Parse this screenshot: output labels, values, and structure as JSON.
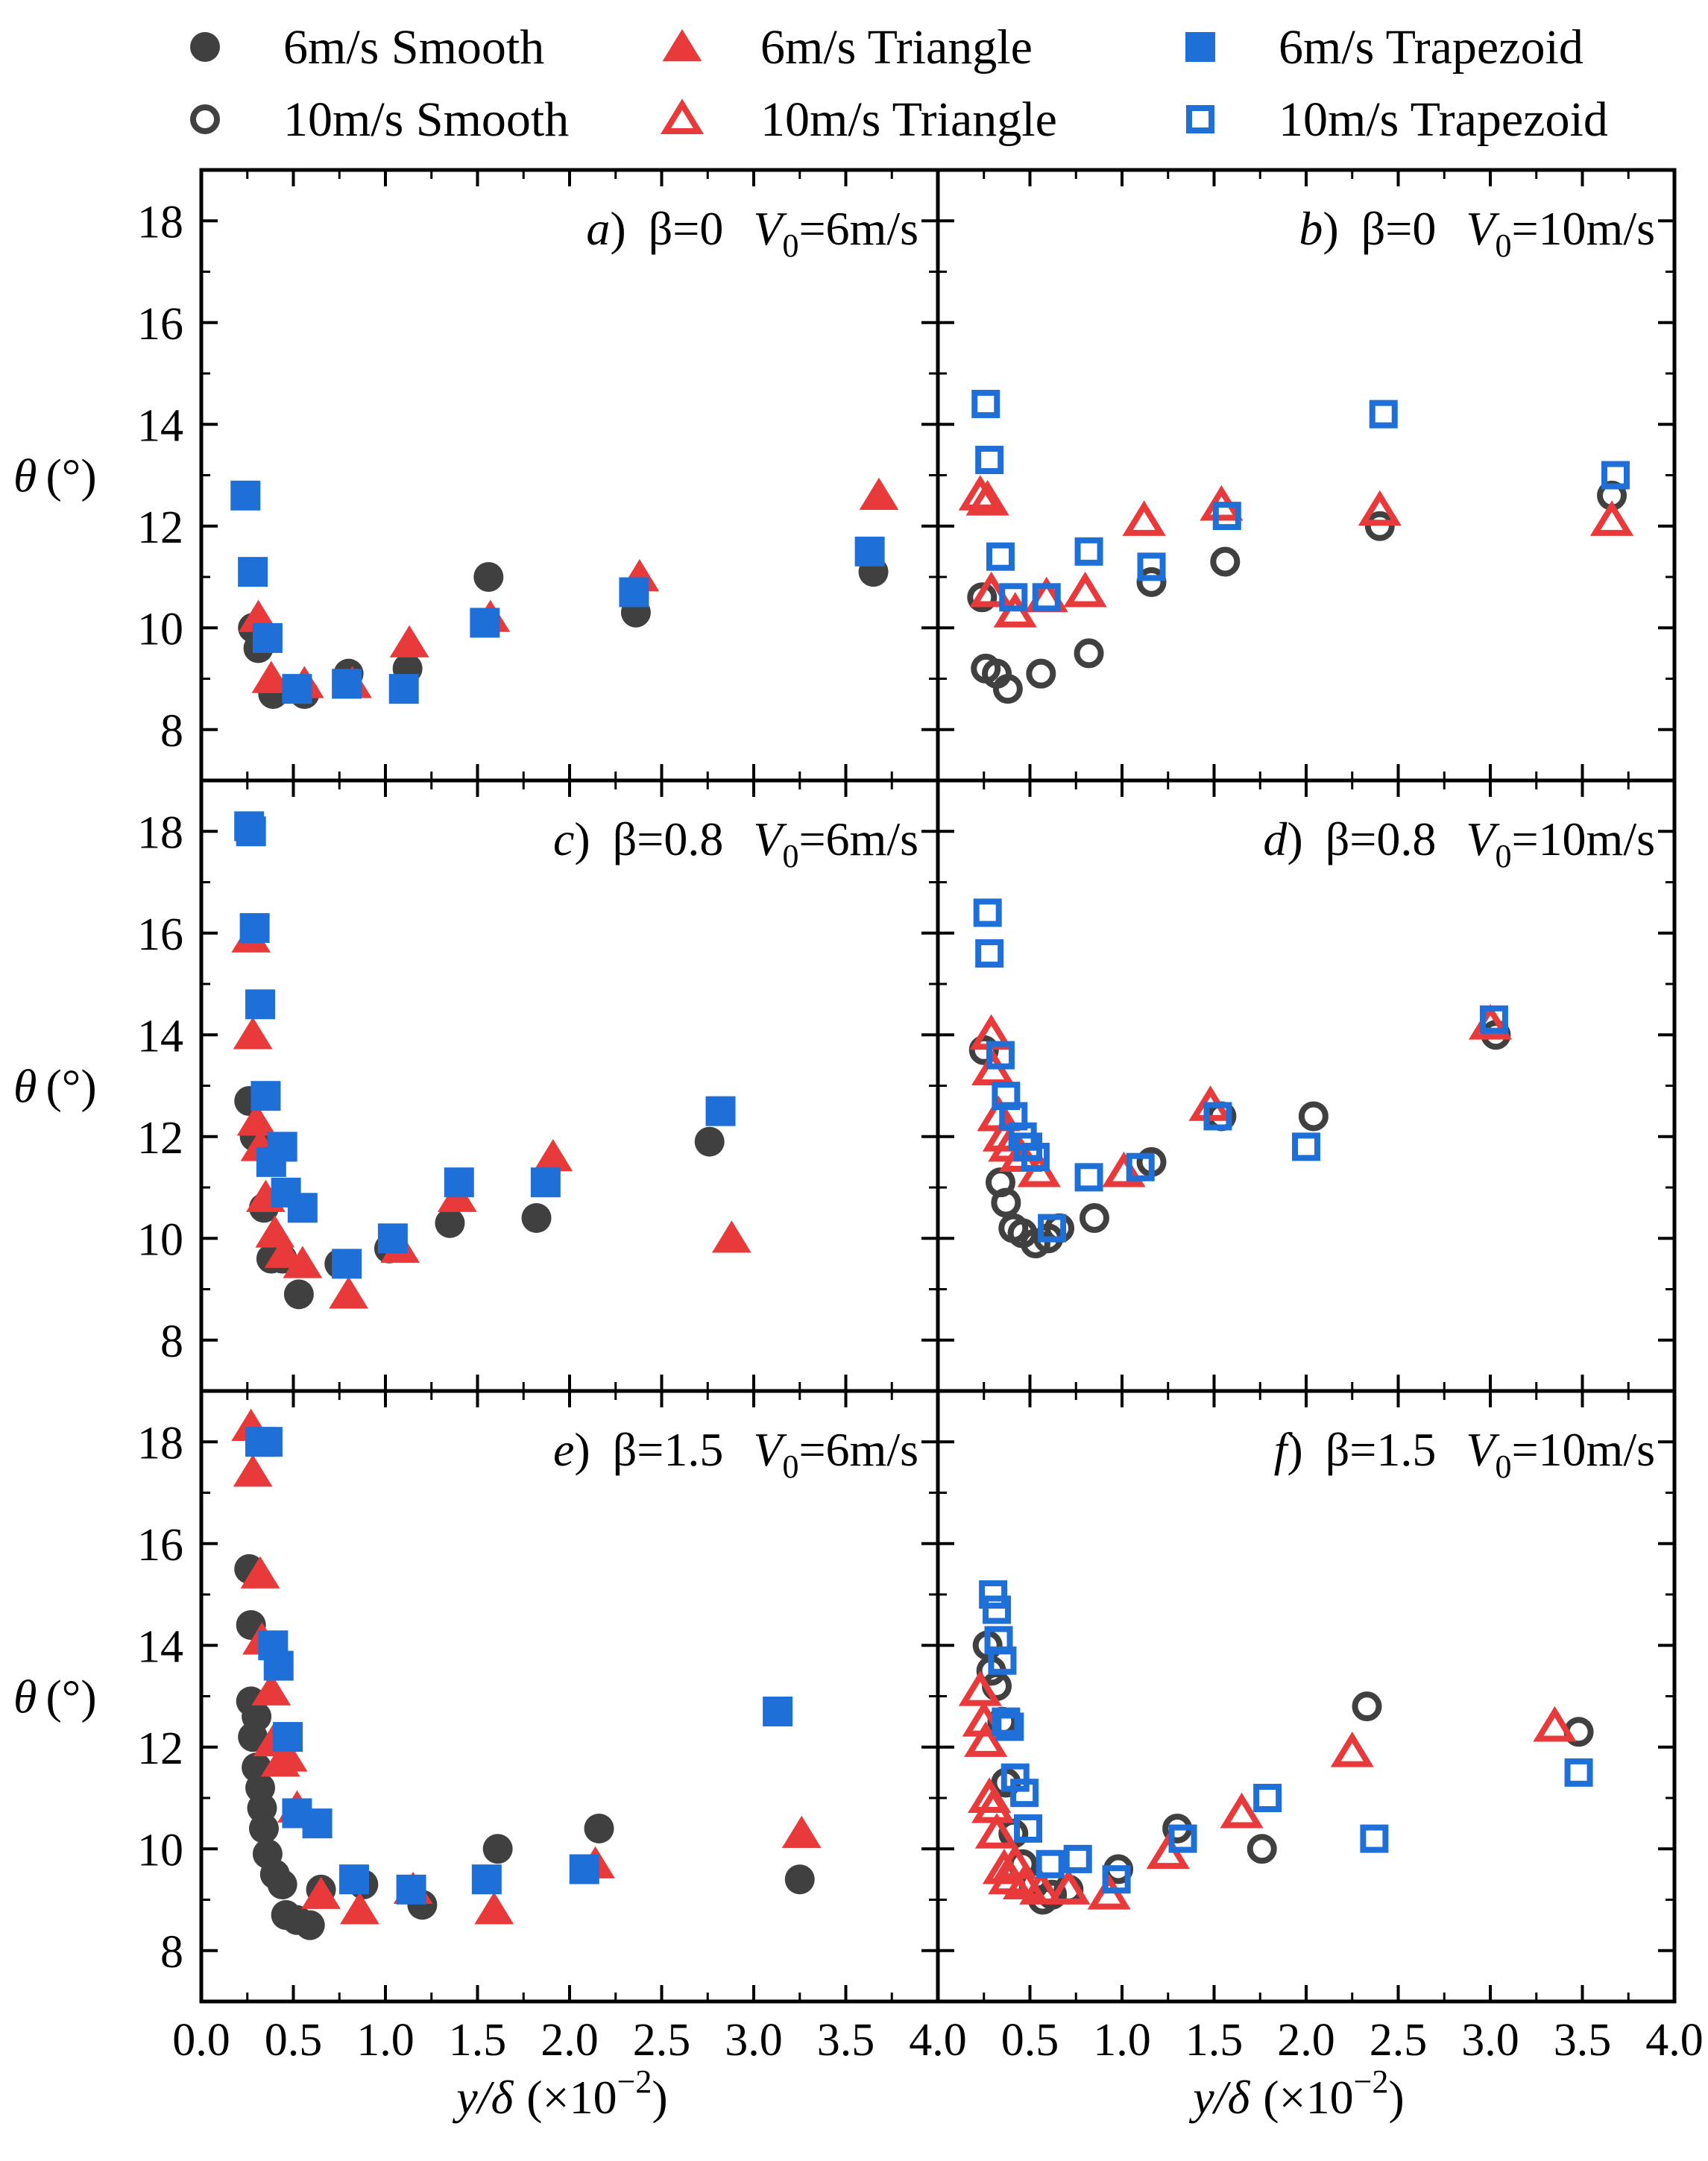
{
  "chart_data": {
    "type": "scatter",
    "legend": {
      "placement": "top",
      "entries": [
        {
          "key": "s6",
          "label": "6m/s Smooth"
        },
        {
          "key": "t6",
          "label": "6m/s Triangle"
        },
        {
          "key": "z6",
          "label": "6m/s Trapezoid"
        },
        {
          "key": "s10",
          "label": "10m/s Smooth"
        },
        {
          "key": "t10",
          "label": "10m/s Triangle"
        },
        {
          "key": "z10",
          "label": "10m/s Trapezoid"
        }
      ]
    },
    "styles": {
      "s6": {
        "marker": "circle",
        "filled": true,
        "color": "#404040"
      },
      "t6": {
        "marker": "triangle",
        "filled": true,
        "color": "#e83a3a"
      },
      "z6": {
        "marker": "square",
        "filled": true,
        "color": "#1f6fd8"
      },
      "s10": {
        "marker": "circle",
        "filled": false,
        "color": "#404040"
      },
      "t10": {
        "marker": "triangle",
        "filled": false,
        "color": "#e83a3a"
      },
      "z10": {
        "marker": "square",
        "filled": false,
        "color": "#1f6fd8"
      }
    },
    "xlim": [
      0,
      4.0
    ],
    "ylim": [
      7,
      19
    ],
    "xticks": [
      "0.0",
      "0.5",
      "1.0",
      "1.5",
      "2.0",
      "2.5",
      "3.0",
      "3.5",
      "4.0"
    ],
    "yticks": [
      "8",
      "10",
      "12",
      "14",
      "16",
      "18"
    ],
    "xlabel": {
      "var": "y/δ",
      "suffix": "(×10",
      "exp": "−2",
      "close": ")"
    },
    "ylabel": {
      "var": "θ",
      "unit": "(°)"
    },
    "panels": [
      {
        "id": "a",
        "label": "a",
        "beta": "β=0",
        "v0": "V",
        "v0sub": "0",
        "v0val": "=6m/s",
        "series": [
          {
            "key": "s6",
            "name": "6m/s Smooth",
            "x": [
              0.28,
              0.31,
              0.39,
              0.56,
              0.8,
              1.12,
              1.56,
              2.36,
              3.65
            ],
            "y": [
              10.0,
              9.6,
              8.7,
              8.7,
              9.1,
              9.2,
              11.0,
              10.3,
              11.1
            ]
          },
          {
            "key": "t6",
            "name": "6m/s Triangle",
            "x": [
              0.31,
              0.38,
              0.56,
              0.82,
              1.13,
              1.57,
              2.38,
              3.68
            ],
            "y": [
              10.2,
              9.0,
              8.9,
              8.9,
              9.7,
              10.2,
              11.0,
              12.6
            ]
          },
          {
            "key": "z6",
            "name": "6m/s Trapezoid",
            "x": [
              0.24,
              0.28,
              0.36,
              0.52,
              0.79,
              1.1,
              1.54,
              2.35,
              3.63
            ],
            "y": [
              12.6,
              11.1,
              9.8,
              8.8,
              8.9,
              8.8,
              10.1,
              10.7,
              11.5
            ]
          }
        ]
      },
      {
        "id": "b",
        "label": "b",
        "beta": "β=0",
        "v0": "V",
        "v0sub": "0",
        "v0val": "=10m/s",
        "series": [
          {
            "key": "s10",
            "name": "10m/s Smooth",
            "x": [
              0.24,
              0.26,
              0.32,
              0.38,
              0.56,
              0.82,
              1.16,
              1.56,
              2.4,
              3.66
            ],
            "y": [
              10.6,
              9.2,
              9.1,
              8.8,
              9.1,
              9.5,
              10.9,
              11.3,
              12.0,
              12.6
            ]
          },
          {
            "key": "t10",
            "name": "10m/s Triangle",
            "x": [
              0.23,
              0.27,
              0.29,
              0.42,
              0.59,
              0.8,
              1.12,
              1.54,
              2.4,
              3.66
            ],
            "y": [
              12.6,
              12.5,
              10.7,
              10.3,
              10.6,
              10.7,
              12.1,
              12.4,
              12.3,
              12.1
            ]
          },
          {
            "key": "z10",
            "name": "10m/s Trapezoid",
            "x": [
              0.26,
              0.28,
              0.34,
              0.41,
              0.59,
              0.82,
              1.16,
              1.57,
              2.42,
              3.68
            ],
            "y": [
              14.4,
              13.3,
              11.4,
              10.6,
              10.6,
              11.5,
              11.2,
              12.2,
              14.2,
              13.0
            ]
          }
        ]
      },
      {
        "id": "c",
        "label": "c",
        "beta": "β=0.8",
        "v0": "V",
        "v0sub": "0",
        "v0val": "=6m/s",
        "series": [
          {
            "key": "s6",
            "name": "6m/s Smooth",
            "x": [
              0.26,
              0.29,
              0.34,
              0.38,
              0.44,
              0.53,
              0.75,
              1.02,
              1.35,
              1.82,
              2.76
            ],
            "y": [
              12.7,
              12.0,
              10.6,
              9.6,
              9.6,
              8.9,
              9.5,
              9.8,
              10.3,
              10.4,
              11.9
            ]
          },
          {
            "key": "t6",
            "name": "6m/s Triangle",
            "x": [
              0.27,
              0.28,
              0.3,
              0.32,
              0.35,
              0.4,
              0.45,
              0.55,
              0.8,
              1.08,
              1.39,
              1.91,
              2.88
            ],
            "y": [
              15.9,
              14.0,
              12.3,
              11.8,
              10.8,
              10.1,
              9.7,
              9.5,
              8.9,
              9.8,
              10.8,
              11.6,
              10.0
            ]
          },
          {
            "key": "z6",
            "name": "6m/s Trapezoid",
            "x": [
              0.26,
              0.27,
              0.29,
              0.32,
              0.35,
              0.38,
              0.44,
              0.46,
              0.55,
              0.79,
              1.04,
              1.4,
              1.87,
              2.82
            ],
            "y": [
              18.1,
              18.0,
              16.1,
              14.6,
              12.8,
              11.5,
              11.8,
              10.9,
              10.6,
              9.5,
              10.0,
              11.1,
              11.1,
              12.5
            ]
          }
        ]
      },
      {
        "id": "d",
        "label": "d",
        "beta": "β=0.8",
        "v0": "V",
        "v0sub": "0",
        "v0val": "=10m/s",
        "series": [
          {
            "key": "s10",
            "name": "10m/s Smooth",
            "x": [
              0.25,
              0.34,
              0.37,
              0.41,
              0.46,
              0.53,
              0.6,
              0.66,
              0.85,
              1.16,
              1.54,
              2.04,
              3.03
            ],
            "y": [
              13.7,
              11.1,
              10.7,
              10.2,
              10.1,
              9.9,
              10.0,
              10.2,
              10.4,
              11.5,
              12.4,
              12.4,
              14.0
            ]
          },
          {
            "key": "t10",
            "name": "10m/s Triangle",
            "x": [
              0.29,
              0.3,
              0.33,
              0.36,
              0.39,
              0.45,
              0.55,
              1.01,
              1.48,
              3.0
            ],
            "y": [
              14.0,
              13.3,
              12.4,
              12.0,
              11.8,
              11.6,
              11.3,
              11.3,
              12.6,
              14.2
            ]
          },
          {
            "key": "z10",
            "name": "10m/s Trapezoid",
            "x": [
              0.27,
              0.28,
              0.34,
              0.37,
              0.41,
              0.46,
              0.49,
              0.53,
              0.62,
              0.82,
              1.1,
              1.52,
              2.0,
              3.02
            ],
            "y": [
              16.4,
              15.6,
              13.6,
              12.8,
              12.4,
              12.0,
              11.8,
              11.6,
              10.2,
              11.2,
              11.4,
              12.4,
              11.8,
              14.3
            ]
          }
        ]
      },
      {
        "id": "e",
        "label": "e",
        "beta": "β=1.5",
        "v0": "V",
        "v0sub": "0",
        "v0val": "=6m/s",
        "series": [
          {
            "key": "s6",
            "name": "6m/s Smooth",
            "x": [
              0.26,
              0.27,
              0.27,
              0.28,
              0.3,
              0.3,
              0.32,
              0.33,
              0.34,
              0.36,
              0.4,
              0.44,
              0.46,
              0.52,
              0.59,
              0.65,
              0.88,
              1.2,
              1.61,
              2.16,
              3.25
            ],
            "y": [
              15.5,
              14.4,
              12.9,
              12.2,
              12.6,
              11.6,
              11.2,
              10.8,
              10.4,
              9.9,
              9.5,
              9.3,
              8.7,
              8.6,
              8.5,
              9.2,
              9.3,
              8.9,
              10.0,
              10.4,
              9.4
            ]
          },
          {
            "key": "t6",
            "name": "6m/s Triangle",
            "x": [
              0.27,
              0.28,
              0.32,
              0.33,
              0.38,
              0.39,
              0.43,
              0.47,
              0.52,
              0.65,
              0.86,
              1.15,
              1.59,
              2.14,
              3.26
            ],
            "y": [
              18.3,
              17.4,
              15.4,
              14.1,
              13.1,
              12.1,
              11.7,
              11.8,
              10.8,
              9.1,
              8.8,
              9.2,
              8.8,
              9.7,
              10.3
            ]
          },
          {
            "key": "z6",
            "name": "6m/s Trapezoid",
            "x": [
              0.32,
              0.36,
              0.39,
              0.42,
              0.47,
              0.52,
              0.63,
              0.83,
              1.14,
              1.55,
              2.08,
              3.13
            ],
            "y": [
              18.0,
              18.0,
              14.0,
              13.6,
              12.2,
              10.7,
              10.5,
              9.4,
              9.2,
              9.4,
              9.6,
              12.7
            ]
          }
        ]
      },
      {
        "id": "f",
        "label": "f",
        "beta": "β=1.5",
        "v0": "V",
        "v0sub": "0",
        "v0val": "=10m/s",
        "series": [
          {
            "key": "s10",
            "name": "10m/s Smooth",
            "x": [
              0.27,
              0.29,
              0.32,
              0.35,
              0.37,
              0.41,
              0.46,
              0.52,
              0.57,
              0.62,
              0.71,
              0.98,
              1.3,
              1.76,
              2.33,
              3.48
            ],
            "y": [
              14.0,
              13.5,
              13.2,
              12.5,
              11.3,
              10.3,
              9.7,
              9.3,
              9.0,
              9.1,
              9.2,
              9.6,
              10.4,
              10.0,
              12.8,
              12.3
            ]
          },
          {
            "key": "t10",
            "name": "10m/s Triangle",
            "x": [
              0.23,
              0.25,
              0.26,
              0.28,
              0.3,
              0.32,
              0.36,
              0.39,
              0.42,
              0.47,
              0.56,
              0.71,
              0.93,
              1.25,
              1.65,
              2.25,
              3.35
            ],
            "y": [
              13.1,
              12.5,
              12.1,
              11.0,
              10.8,
              10.3,
              9.6,
              9.4,
              9.7,
              9.3,
              9.2,
              9.2,
              9.1,
              9.9,
              10.7,
              11.9,
              12.4
            ]
          },
          {
            "key": "z10",
            "name": "10m/s Trapezoid",
            "x": [
              0.3,
              0.32,
              0.33,
              0.35,
              0.37,
              0.39,
              0.42,
              0.47,
              0.49,
              0.61,
              0.76,
              0.97,
              1.33,
              1.79,
              2.37,
              3.48
            ],
            "y": [
              15.0,
              14.7,
              14.1,
              13.7,
              12.5,
              12.4,
              11.4,
              11.1,
              10.4,
              9.7,
              9.8,
              9.4,
              10.2,
              11.0,
              10.2,
              11.5
            ]
          }
        ]
      }
    ]
  }
}
